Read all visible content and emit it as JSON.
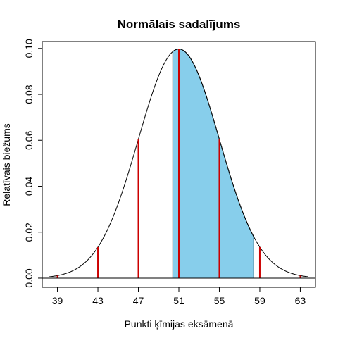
{
  "chart_data": {
    "type": "area",
    "title": "Normālais sadalījums",
    "xlabel": "Punkti ķīmijas eksāmenā",
    "ylabel": "Relatīvais biežums",
    "xlim": [
      37.5,
      64.5
    ],
    "ylim": [
      -0.004,
      0.103
    ],
    "x_ticks": [
      "39",
      "43",
      "47",
      "51",
      "55",
      "59",
      "63"
    ],
    "y_ticks": [
      "0.00",
      "0.02",
      "0.04",
      "0.06",
      "0.08",
      "0.10"
    ],
    "grid": false,
    "curve": {
      "distribution": "normal",
      "mean": 51,
      "sd": 4
    },
    "shaded_region": {
      "from": 50.4,
      "to": 58.4,
      "color": "#87ceeb"
    },
    "markers": {
      "x": [
        39,
        43,
        47,
        51,
        55,
        59,
        63
      ],
      "color": "#cc0000"
    }
  }
}
